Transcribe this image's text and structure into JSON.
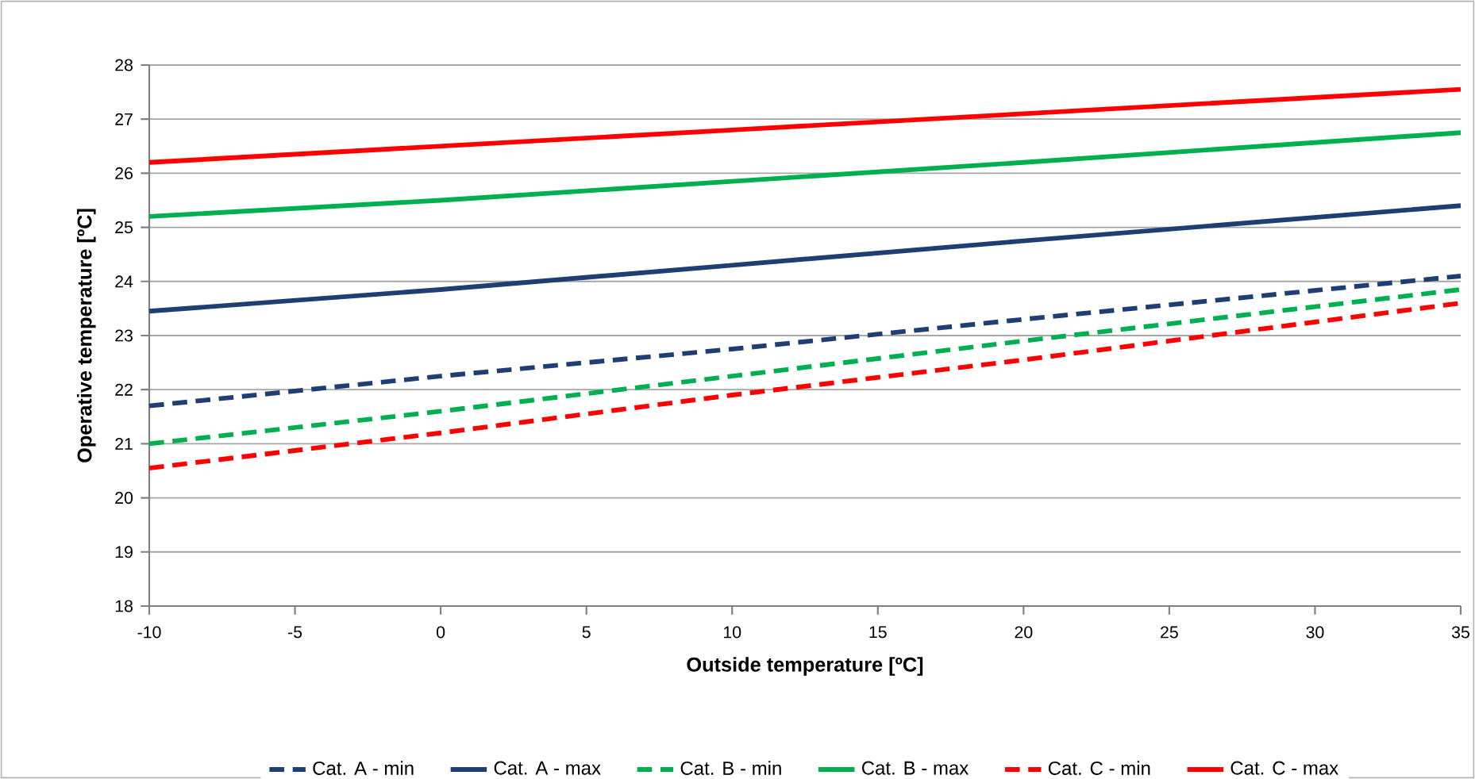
{
  "chart_data": {
    "type": "line",
    "xlabel": "Outside temperature [ºC]",
    "ylabel": "Operative temperature [ºC]",
    "xlim": [
      -10,
      35
    ],
    "xticks": [
      -10,
      -5,
      0,
      5,
      10,
      15,
      20,
      25,
      30,
      35
    ],
    "ylim": [
      18,
      28
    ],
    "yticks": [
      18,
      19,
      20,
      21,
      22,
      23,
      24,
      25,
      26,
      27,
      28
    ],
    "grid": "y",
    "legend": "bottom",
    "x": [
      -10,
      0,
      10,
      20,
      35
    ],
    "series": [
      {
        "name": "Cat. A - min",
        "color": "#1f3e74",
        "line_style": "dashed",
        "values": [
          21.7,
          22.25,
          22.75,
          23.3,
          24.1
        ]
      },
      {
        "name": "Cat. A - max",
        "color": "#1f3e74",
        "line_style": "solid",
        "values": [
          23.45,
          23.85,
          24.3,
          24.75,
          25.4
        ]
      },
      {
        "name": "Cat. B - min",
        "color": "#00b050",
        "line_style": "dashed",
        "values": [
          21.0,
          21.6,
          22.25,
          22.9,
          23.85
        ]
      },
      {
        "name": "Cat. B - max",
        "color": "#00b050",
        "line_style": "solid",
        "values": [
          25.2,
          25.5,
          25.85,
          26.2,
          26.75
        ]
      },
      {
        "name": "Cat. C - min",
        "color": "#ff0000",
        "line_style": "dashed",
        "values": [
          20.55,
          21.2,
          21.9,
          22.55,
          23.6
        ]
      },
      {
        "name": "Cat. C - max",
        "color": "#ff0000",
        "line_style": "solid",
        "values": [
          26.2,
          26.5,
          26.8,
          27.1,
          27.55
        ]
      }
    ]
  }
}
